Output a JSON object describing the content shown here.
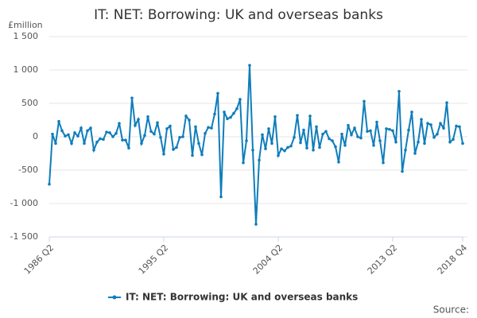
{
  "chart_data": {
    "type": "line",
    "title": "IT: NET: Borrowing: UK and overseas banks",
    "y_unit": "£million",
    "source": "Source:",
    "categories": [
      "1986 Q2",
      null,
      null,
      null,
      null,
      null,
      null,
      null,
      null,
      null,
      null,
      null,
      null,
      null,
      null,
      null,
      null,
      null,
      null,
      null,
      null,
      null,
      null,
      null,
      null,
      null,
      null,
      null,
      null,
      null,
      null,
      null,
      null,
      null,
      null,
      null,
      "1995 Q2",
      null,
      null,
      null,
      null,
      null,
      null,
      null,
      null,
      null,
      null,
      null,
      null,
      null,
      null,
      null,
      null,
      null,
      null,
      null,
      null,
      null,
      null,
      null,
      null,
      null,
      null,
      null,
      null,
      null,
      null,
      null,
      null,
      null,
      null,
      null,
      "2004 Q2",
      null,
      null,
      null,
      null,
      null,
      null,
      null,
      null,
      null,
      null,
      null,
      null,
      null,
      null,
      null,
      null,
      null,
      null,
      null,
      null,
      null,
      null,
      null,
      null,
      null,
      null,
      null,
      null,
      null,
      null,
      null,
      null,
      null,
      null,
      null,
      "2013 Q2",
      null,
      null,
      null,
      null,
      null,
      null,
      null,
      null,
      null,
      null,
      null,
      null,
      null,
      null,
      null,
      null,
      null,
      null,
      null,
      null,
      null,
      "2018 Q4"
    ],
    "series": [
      {
        "name": "IT: NET: Borrowing: UK and overseas banks",
        "color": "#0f7dbb",
        "values": [
          -710,
          40,
          -100,
          230,
          90,
          10,
          30,
          -100,
          60,
          10,
          130,
          -100,
          90,
          130,
          -200,
          -80,
          -30,
          -40,
          70,
          60,
          0,
          50,
          200,
          -50,
          -50,
          -170,
          580,
          170,
          260,
          -100,
          20,
          300,
          80,
          40,
          210,
          -10,
          -260,
          120,
          160,
          -190,
          -160,
          -10,
          0,
          310,
          250,
          -280,
          150,
          -100,
          -270,
          50,
          140,
          130,
          340,
          650,
          -900,
          370,
          270,
          290,
          350,
          420,
          560,
          -390,
          -60,
          1070,
          -200,
          -1310,
          -350,
          30,
          -180,
          120,
          -100,
          300,
          -280,
          -180,
          -210,
          -160,
          -140,
          -10,
          320,
          -90,
          100,
          -170,
          310,
          -200,
          150,
          -160,
          40,
          80,
          -30,
          -60,
          -150,
          -380,
          40,
          -130,
          170,
          30,
          130,
          0,
          -20,
          530,
          80,
          90,
          -130,
          220,
          -60,
          -390,
          120,
          110,
          90,
          -80,
          680,
          -520,
          -200,
          100,
          370,
          -250,
          -80,
          260,
          -100,
          200,
          180,
          -10,
          40,
          200,
          130,
          510,
          -80,
          -40,
          160,
          150,
          -100
        ]
      }
    ],
    "ylim": [
      -1500,
      1500
    ],
    "yticks": [
      {
        "value": -1500,
        "label": "-1 500"
      },
      {
        "value": -1000,
        "label": "-1 000"
      },
      -500,
      0,
      500,
      {
        "value": 1000,
        "label": "1 000"
      },
      {
        "value": 1500,
        "label": "1 500"
      }
    ],
    "grid": true,
    "legend": "bottom"
  }
}
